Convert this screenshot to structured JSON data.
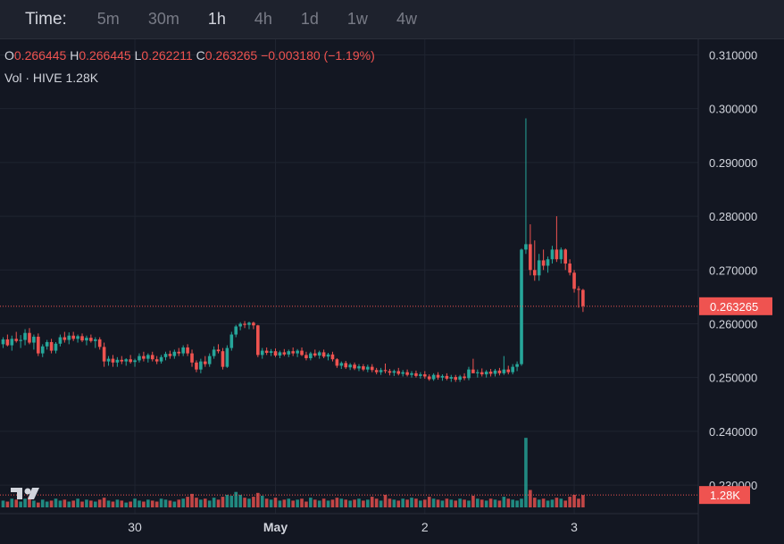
{
  "toolbar": {
    "label": "Time:",
    "intervals": [
      "5m",
      "30m",
      "1h",
      "4h",
      "1d",
      "1w",
      "4w"
    ],
    "active": "1h"
  },
  "legend": {
    "o_label": "O",
    "o": "0.266445",
    "h_label": "H",
    "h": "0.266445",
    "l_label": "L",
    "l": "0.262211",
    "c_label": "C",
    "c": "0.263265",
    "change": "−0.003180 (−1.19%)"
  },
  "volume_legend": {
    "label": "Vol · HIVE",
    "value": "1.28K"
  },
  "colors": {
    "up": "#26a69a",
    "down": "#ef5350",
    "background": "#131722",
    "grid": "#1f2430",
    "text": "#d1d4dc"
  },
  "chart_data": {
    "type": "candlestick",
    "price_axis": {
      "ticks": [
        "0.310000",
        "0.300000",
        "0.290000",
        "0.280000",
        "0.270000",
        "0.260000",
        "0.250000",
        "0.240000",
        "0.230000"
      ],
      "range": [
        0.2247,
        0.3129
      ],
      "last_price_label": "0.263265",
      "last_volume_label": "1.28K"
    },
    "time_axis": {
      "labels": [
        {
          "text": "30",
          "index": 30
        },
        {
          "text": "May",
          "index": 62
        },
        {
          "text": "2",
          "index": 96
        },
        {
          "text": "3",
          "index": 130
        }
      ]
    },
    "candles": [
      [
        0.2562,
        0.2575,
        0.2555,
        0.2571
      ],
      [
        0.2571,
        0.258,
        0.2558,
        0.256
      ],
      [
        0.256,
        0.2578,
        0.255,
        0.2572
      ],
      [
        0.2572,
        0.2585,
        0.2565,
        0.2568
      ],
      [
        0.2568,
        0.2579,
        0.2555,
        0.257
      ],
      [
        0.257,
        0.259,
        0.256,
        0.2583
      ],
      [
        0.2583,
        0.2592,
        0.2562,
        0.2565
      ],
      [
        0.2565,
        0.258,
        0.2552,
        0.2576
      ],
      [
        0.2576,
        0.2582,
        0.254,
        0.2545
      ],
      [
        0.2545,
        0.2562,
        0.2538,
        0.2558
      ],
      [
        0.2558,
        0.257,
        0.2552,
        0.2566
      ],
      [
        0.2566,
        0.2572,
        0.2545,
        0.255
      ],
      [
        0.255,
        0.2566,
        0.2545,
        0.2563
      ],
      [
        0.2563,
        0.258,
        0.2558,
        0.2575
      ],
      [
        0.2575,
        0.2585,
        0.2565,
        0.257
      ],
      [
        0.257,
        0.2584,
        0.2562,
        0.2578
      ],
      [
        0.2578,
        0.2585,
        0.2568,
        0.2572
      ],
      [
        0.2572,
        0.258,
        0.2565,
        0.2577
      ],
      [
        0.2577,
        0.2582,
        0.2566,
        0.2569
      ],
      [
        0.2569,
        0.2578,
        0.256,
        0.2574
      ],
      [
        0.2574,
        0.258,
        0.2565,
        0.2568
      ],
      [
        0.2568,
        0.2575,
        0.2555,
        0.2571
      ],
      [
        0.2571,
        0.2575,
        0.2552,
        0.2557
      ],
      [
        0.2557,
        0.2565,
        0.252,
        0.253
      ],
      [
        0.253,
        0.254,
        0.2522,
        0.2535
      ],
      [
        0.2535,
        0.2542,
        0.252,
        0.2528
      ],
      [
        0.2528,
        0.2538,
        0.252,
        0.2533
      ],
      [
        0.2533,
        0.254,
        0.2525,
        0.253
      ],
      [
        0.253,
        0.2536,
        0.2522,
        0.2534
      ],
      [
        0.2534,
        0.2542,
        0.2526,
        0.2529
      ],
      [
        0.2529,
        0.2535,
        0.252,
        0.2532
      ],
      [
        0.2532,
        0.2545,
        0.2528,
        0.254
      ],
      [
        0.254,
        0.2548,
        0.253,
        0.2535
      ],
      [
        0.2535,
        0.2545,
        0.2528,
        0.2542
      ],
      [
        0.2542,
        0.2548,
        0.253,
        0.2534
      ],
      [
        0.2534,
        0.254,
        0.2525,
        0.253
      ],
      [
        0.253,
        0.2542,
        0.2526,
        0.2538
      ],
      [
        0.2538,
        0.2548,
        0.2532,
        0.2544
      ],
      [
        0.2544,
        0.255,
        0.2535,
        0.254
      ],
      [
        0.254,
        0.2552,
        0.2535,
        0.2548
      ],
      [
        0.2548,
        0.2555,
        0.254,
        0.2545
      ],
      [
        0.2545,
        0.256,
        0.254,
        0.2556
      ],
      [
        0.2556,
        0.2562,
        0.254,
        0.2545
      ],
      [
        0.2545,
        0.2552,
        0.252,
        0.2528
      ],
      [
        0.2528,
        0.2532,
        0.251,
        0.2515
      ],
      [
        0.2515,
        0.2535,
        0.2508,
        0.253
      ],
      [
        0.253,
        0.254,
        0.252,
        0.2525
      ],
      [
        0.2525,
        0.2545,
        0.252,
        0.254
      ],
      [
        0.254,
        0.2558,
        0.2535,
        0.2552
      ],
      [
        0.2552,
        0.2562,
        0.2545,
        0.2549
      ],
      [
        0.2549,
        0.2555,
        0.2515,
        0.252
      ],
      [
        0.252,
        0.256,
        0.2518,
        0.2555
      ],
      [
        0.2555,
        0.2585,
        0.255,
        0.258
      ],
      [
        0.258,
        0.2598,
        0.2575,
        0.2595
      ],
      [
        0.2595,
        0.2603,
        0.2588,
        0.26
      ],
      [
        0.26,
        0.2605,
        0.2592,
        0.2598
      ],
      [
        0.2598,
        0.2604,
        0.259,
        0.2602
      ],
      [
        0.2602,
        0.2604,
        0.259,
        0.2597
      ],
      [
        0.2597,
        0.2598,
        0.2538,
        0.2542
      ],
      [
        0.2542,
        0.2555,
        0.2535,
        0.255
      ],
      [
        0.255,
        0.2556,
        0.2542,
        0.2546
      ],
      [
        0.2546,
        0.2553,
        0.254,
        0.2549
      ],
      [
        0.2549,
        0.2554,
        0.2538,
        0.2541
      ],
      [
        0.2541,
        0.255,
        0.2536,
        0.2547
      ],
      [
        0.2547,
        0.2553,
        0.254,
        0.2543
      ],
      [
        0.2543,
        0.2552,
        0.2538,
        0.2549
      ],
      [
        0.2549,
        0.2556,
        0.254,
        0.2545
      ],
      [
        0.2545,
        0.2553,
        0.2538,
        0.255
      ],
      [
        0.255,
        0.2556,
        0.254,
        0.2542
      ],
      [
        0.2542,
        0.2548,
        0.2532,
        0.2536
      ],
      [
        0.2536,
        0.2548,
        0.2532,
        0.2545
      ],
      [
        0.2545,
        0.2552,
        0.2538,
        0.2541
      ],
      [
        0.2541,
        0.255,
        0.2535,
        0.2547
      ],
      [
        0.2547,
        0.2552,
        0.2536,
        0.2539
      ],
      [
        0.2539,
        0.2546,
        0.2532,
        0.2543
      ],
      [
        0.2543,
        0.2548,
        0.253,
        0.2534
      ],
      [
        0.2534,
        0.2536,
        0.2518,
        0.2522
      ],
      [
        0.2522,
        0.253,
        0.2516,
        0.2527
      ],
      [
        0.2527,
        0.2531,
        0.2516,
        0.2519
      ],
      [
        0.2519,
        0.2527,
        0.2514,
        0.2524
      ],
      [
        0.2524,
        0.2528,
        0.2514,
        0.2517
      ],
      [
        0.2517,
        0.2525,
        0.2512,
        0.2521
      ],
      [
        0.2521,
        0.2525,
        0.2512,
        0.2515
      ],
      [
        0.2515,
        0.2524,
        0.251,
        0.252
      ],
      [
        0.252,
        0.2525,
        0.251,
        0.2514
      ],
      [
        0.2514,
        0.2518,
        0.2506,
        0.251
      ],
      [
        0.251,
        0.2518,
        0.2505,
        0.2514
      ],
      [
        0.2514,
        0.2526,
        0.2508,
        0.2512
      ],
      [
        0.2512,
        0.2516,
        0.2504,
        0.2509
      ],
      [
        0.2509,
        0.2515,
        0.2503,
        0.2512
      ],
      [
        0.2512,
        0.2518,
        0.2504,
        0.2507
      ],
      [
        0.2507,
        0.2514,
        0.2502,
        0.251
      ],
      [
        0.251,
        0.2515,
        0.2502,
        0.2505
      ],
      [
        0.2505,
        0.2512,
        0.25,
        0.2508
      ],
      [
        0.2508,
        0.2513,
        0.25,
        0.2503
      ],
      [
        0.2503,
        0.251,
        0.2498,
        0.2506
      ],
      [
        0.2506,
        0.2512,
        0.2498,
        0.2502
      ],
      [
        0.2502,
        0.2506,
        0.2494,
        0.2497
      ],
      [
        0.2497,
        0.2508,
        0.2494,
        0.2505
      ],
      [
        0.2505,
        0.251,
        0.2496,
        0.25
      ],
      [
        0.25,
        0.2506,
        0.2494,
        0.2503
      ],
      [
        0.2503,
        0.2508,
        0.2495,
        0.2498
      ],
      [
        0.2498,
        0.2505,
        0.2492,
        0.2501
      ],
      [
        0.2501,
        0.2505,
        0.2492,
        0.2496
      ],
      [
        0.2496,
        0.2505,
        0.2492,
        0.2502
      ],
      [
        0.2502,
        0.2508,
        0.2495,
        0.2499
      ],
      [
        0.2499,
        0.252,
        0.2495,
        0.2515
      ],
      [
        0.2515,
        0.2535,
        0.251,
        0.2508
      ],
      [
        0.2508,
        0.2515,
        0.25,
        0.251
      ],
      [
        0.251,
        0.2517,
        0.2502,
        0.2506
      ],
      [
        0.2506,
        0.2514,
        0.25,
        0.2511
      ],
      [
        0.2511,
        0.2516,
        0.2502,
        0.2507
      ],
      [
        0.2507,
        0.2516,
        0.2502,
        0.2513
      ],
      [
        0.2513,
        0.2518,
        0.2504,
        0.2508
      ],
      [
        0.2508,
        0.254,
        0.2505,
        0.2515
      ],
      [
        0.2515,
        0.2522,
        0.2506,
        0.251
      ],
      [
        0.251,
        0.2525,
        0.2506,
        0.252
      ],
      [
        0.252,
        0.253,
        0.2512,
        0.2525
      ],
      [
        0.2525,
        0.274,
        0.2522,
        0.2738
      ],
      [
        0.2738,
        0.2982,
        0.273,
        0.2748
      ],
      [
        0.2748,
        0.2785,
        0.269,
        0.27
      ],
      [
        0.27,
        0.2755,
        0.268,
        0.269
      ],
      [
        0.269,
        0.273,
        0.268,
        0.2718
      ],
      [
        0.2718,
        0.2738,
        0.27,
        0.2708
      ],
      [
        0.2708,
        0.2725,
        0.2695,
        0.272
      ],
      [
        0.272,
        0.2745,
        0.2712,
        0.2738
      ],
      [
        0.2738,
        0.28,
        0.2715,
        0.272
      ],
      [
        0.272,
        0.2742,
        0.2712,
        0.2738
      ],
      [
        0.2738,
        0.274,
        0.27,
        0.2712
      ],
      [
        0.2712,
        0.272,
        0.269,
        0.2695
      ],
      [
        0.2695,
        0.27,
        0.2658,
        0.2665
      ],
      [
        0.2665,
        0.267,
        0.263,
        0.2663
      ],
      [
        0.2663,
        0.2665,
        0.2622,
        0.2633
      ]
    ],
    "volumes": [
      0.7,
      0.6,
      0.9,
      0.8,
      0.6,
      0.9,
      1.1,
      0.7,
      0.5,
      0.8,
      0.6,
      0.7,
      0.9,
      0.7,
      0.8,
      0.6,
      0.7,
      0.9,
      0.6,
      0.8,
      0.7,
      0.6,
      0.8,
      1.0,
      0.7,
      0.6,
      0.8,
      0.7,
      0.5,
      0.6,
      0.9,
      0.7,
      0.6,
      0.8,
      0.7,
      0.6,
      0.9,
      0.8,
      0.7,
      0.6,
      0.8,
      0.9,
      1.1,
      1.4,
      1.0,
      0.8,
      0.9,
      0.7,
      1.0,
      0.8,
      1.1,
      1.3,
      1.2,
      1.6,
      1.3,
      1.0,
      0.9,
      1.1,
      1.5,
      1.2,
      0.9,
      0.8,
      1.0,
      0.7,
      0.8,
      0.9,
      0.7,
      0.8,
      0.9,
      0.6,
      1.0,
      0.8,
      0.7,
      0.9,
      0.7,
      0.8,
      1.0,
      0.9,
      0.8,
      0.7,
      0.8,
      0.9,
      0.7,
      0.8,
      1.1,
      0.9,
      0.7,
      1.3,
      0.9,
      0.8,
      0.7,
      0.9,
      0.8,
      1.0,
      0.9,
      0.7,
      0.8,
      1.1,
      0.9,
      0.8,
      0.7,
      0.9,
      0.8,
      0.7,
      0.9,
      0.8,
      0.7,
      1.2,
      0.9,
      0.8,
      0.7,
      0.9,
      0.8,
      0.7,
      1.1,
      0.9,
      0.8,
      0.7,
      0.9,
      7.2,
      1.8,
      1.0,
      0.8,
      0.9,
      0.7,
      0.8,
      1.0,
      0.9,
      0.7,
      1.1,
      1.3,
      0.9,
      1.28
    ],
    "volume_scale_max": 7.4
  }
}
